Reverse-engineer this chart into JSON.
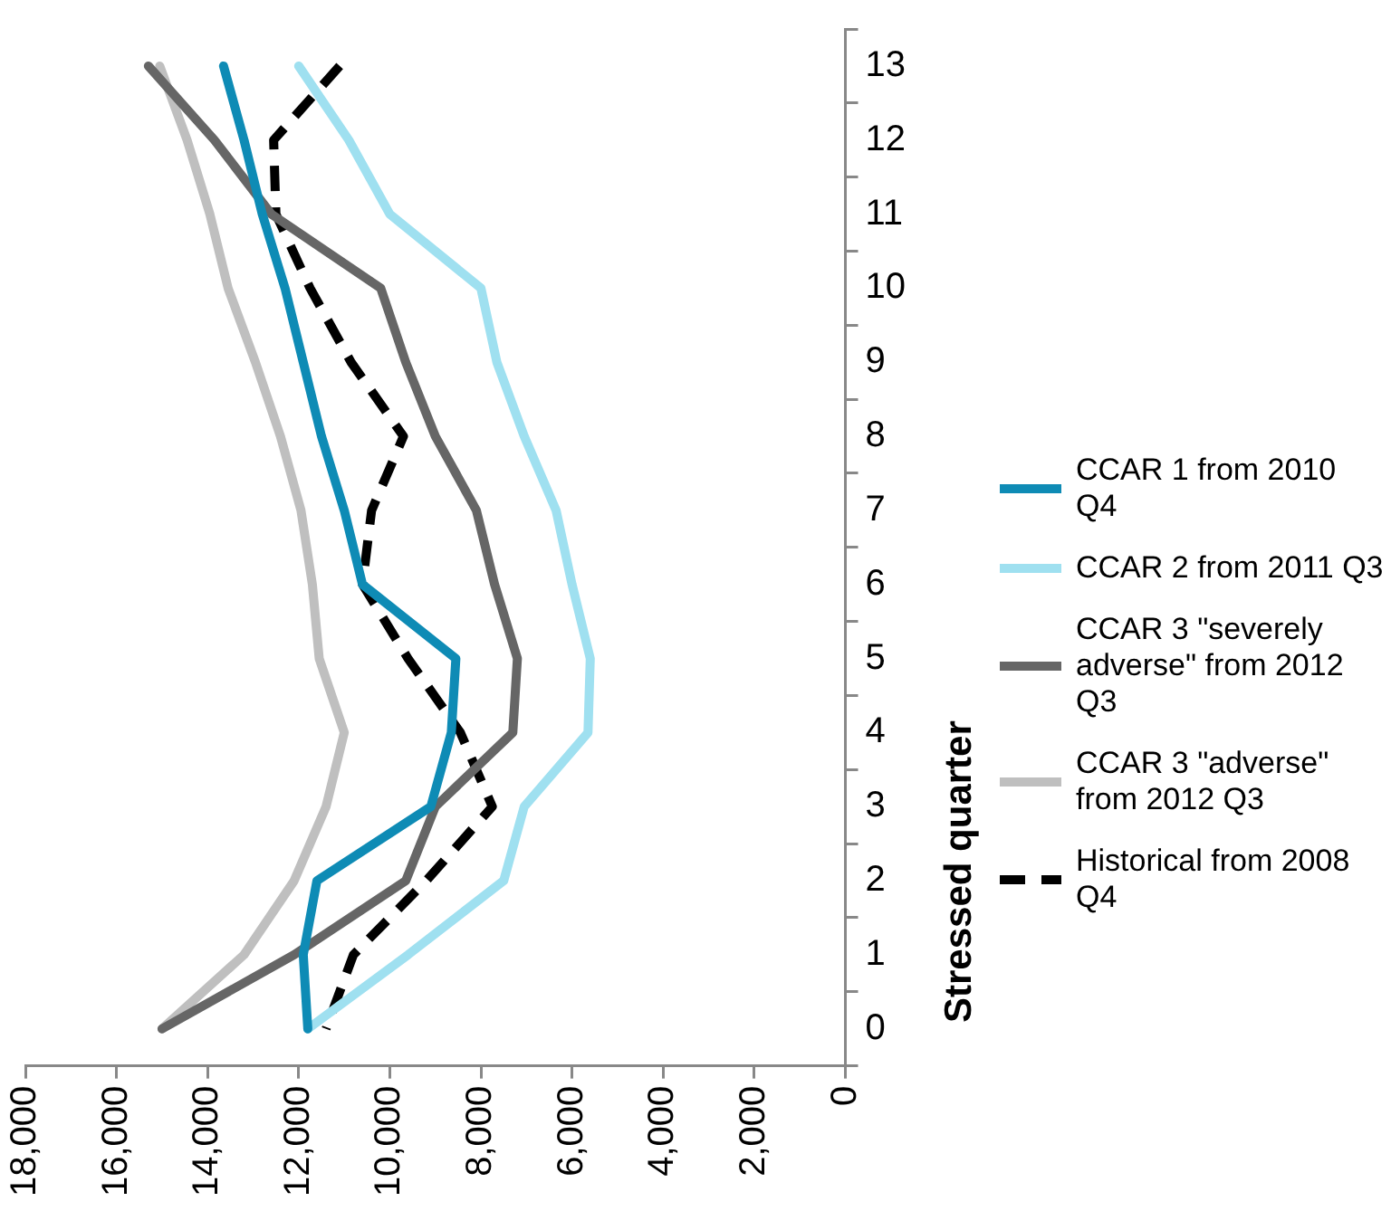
{
  "chart_data": {
    "type": "line",
    "ylabel": "Stressed quarter",
    "categories": [
      "13",
      "12",
      "11",
      "10",
      "9",
      "8",
      "7",
      "6",
      "5",
      "4",
      "3",
      "2",
      "1",
      "0"
    ],
    "series": [
      {
        "name": "CCAR 1 from 2010 Q4",
        "color": "#0e8bb5",
        "line_style": "solid",
        "values": [
          13650,
          13200,
          12800,
          12300,
          11900,
          11500,
          11000,
          10600,
          8550,
          8650,
          9100,
          11600,
          11900,
          11800
        ]
      },
      {
        "name": "CCAR 2 from 2011 Q3",
        "color": "#9fe0f0",
        "line_style": "solid",
        "values": [
          12000,
          10900,
          10000,
          8000,
          7650,
          7050,
          6350,
          6000,
          5600,
          5650,
          7050,
          7500,
          9600,
          11800
        ]
      },
      {
        "name": "CCAR 3 \"severely adverse\" from 2012 Q3",
        "color": "#666666",
        "line_style": "solid",
        "values": [
          15300,
          13850,
          12600,
          10200,
          9650,
          9000,
          8100,
          7700,
          7200,
          7300,
          9000,
          9650,
          12100,
          15000
        ]
      },
      {
        "name": "CCAR 3 \"adverse\" from 2012 Q3",
        "color": "#bfbfbf",
        "line_style": "solid",
        "values": [
          15050,
          14450,
          13950,
          13550,
          12950,
          12400,
          11950,
          11700,
          11550,
          11000,
          11400,
          12100,
          13200,
          15000
        ]
      },
      {
        "name": "Historical from 2008 Q4",
        "color": "#000000",
        "line_style": "dashed",
        "values": [
          11100,
          12550,
          12500,
          11750,
          10850,
          9700,
          10400,
          10600,
          9600,
          8450,
          7750,
          9200,
          10800,
          11400
        ]
      }
    ],
    "orientation": "horizontal",
    "xlim": [
      18000,
      0
    ],
    "xticks": [
      {
        "value": 18000,
        "label": "18,000"
      },
      {
        "value": 16000,
        "label": "16,000"
      },
      {
        "value": 14000,
        "label": "14,000"
      },
      {
        "value": 12000,
        "label": "12,000"
      },
      {
        "value": 10000,
        "label": "10,000"
      },
      {
        "value": 8000,
        "label": "8,000"
      },
      {
        "value": 6000,
        "label": "6,000"
      },
      {
        "value": 4000,
        "label": "4,000"
      },
      {
        "value": 2000,
        "label": "2,000"
      },
      0
    ],
    "grid": false,
    "legend": "right",
    "marker": "none"
  }
}
